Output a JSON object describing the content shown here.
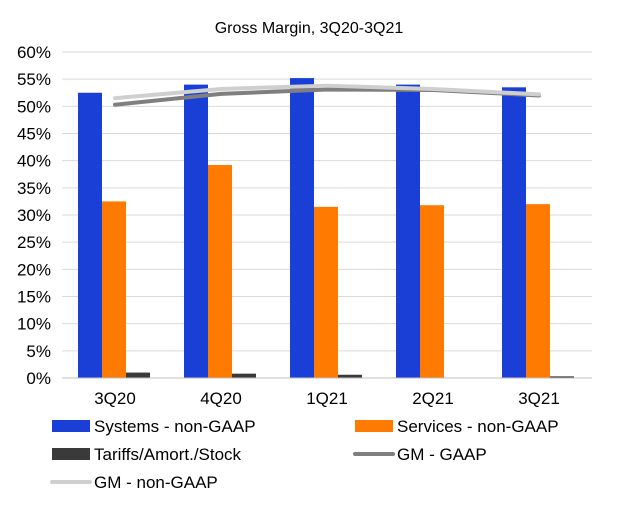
{
  "chart_data": {
    "type": "bar",
    "title": "Gross Margin,  3Q20-3Q21",
    "categories": [
      "3Q20",
      "4Q20",
      "1Q21",
      "2Q21",
      "3Q21"
    ],
    "ylim": [
      0,
      60
    ],
    "yticks": [
      0,
      5,
      10,
      15,
      20,
      25,
      30,
      35,
      40,
      45,
      50,
      55,
      60
    ],
    "ytick_labels": [
      "0%",
      "5%",
      "10%",
      "15%",
      "20%",
      "25%",
      "30%",
      "35%",
      "40%",
      "45%",
      "50%",
      "55%",
      "60%"
    ],
    "grid": true,
    "legend_position": "bottom",
    "series": [
      {
        "name": "Systems - non-GAAP",
        "kind": "bar",
        "color": "#1a3fd6",
        "values": [
          52.5,
          54.0,
          55.2,
          54.0,
          53.5
        ]
      },
      {
        "name": "Services - non-GAAP",
        "kind": "bar",
        "color": "#ff7a00",
        "values": [
          32.5,
          39.2,
          31.5,
          31.8,
          32.0
        ]
      },
      {
        "name": "Tariffs/Amort./Stock",
        "kind": "bar",
        "color": "#3a3a3a",
        "values": [
          1.0,
          0.8,
          0.6,
          0.0,
          0.3
        ]
      },
      {
        "name": "GM - GAAP",
        "kind": "line",
        "color": "#7f7f7f",
        "values": [
          50.3,
          52.3,
          53.1,
          53.0,
          52.0
        ]
      },
      {
        "name": "GM - non-GAAP",
        "kind": "line",
        "color": "#cfcfcf",
        "values": [
          51.5,
          53.2,
          53.8,
          53.2,
          52.2
        ]
      }
    ]
  }
}
